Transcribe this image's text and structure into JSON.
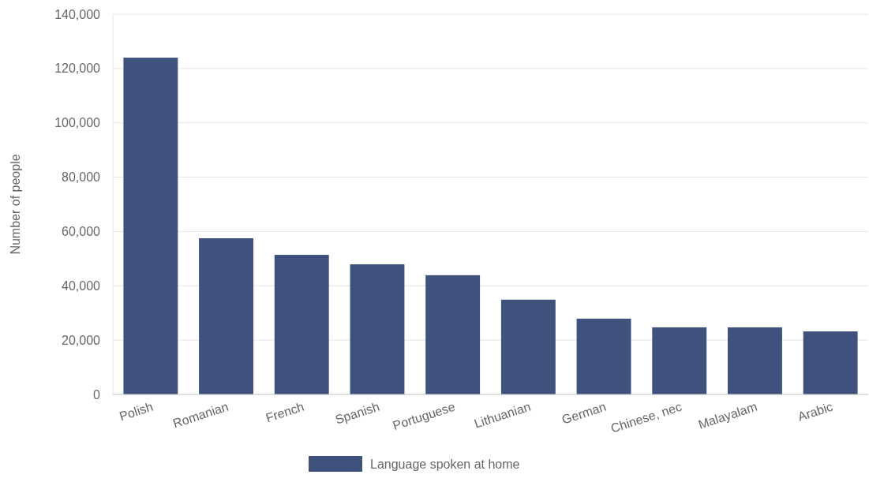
{
  "chart_data": {
    "type": "bar",
    "ylabel": "Number of people",
    "categories": [
      "Polish",
      "Romanian",
      "French",
      "Spanish",
      "Portuguese",
      "Lithuanian",
      "German",
      "Chinese, nec",
      "Malayalam",
      "Arabic"
    ],
    "series": [
      {
        "name": "Language spoken at home",
        "color": "#3f527e",
        "values": [
          124000,
          57500,
          51400,
          47900,
          43900,
          34900,
          27900,
          24700,
          24700,
          23200
        ]
      }
    ],
    "ylim": [
      0,
      140000
    ],
    "yticks": [
      {
        "value": 0,
        "label": "0"
      },
      {
        "value": 20000,
        "label": "20,000"
      },
      {
        "value": 40000,
        "label": "40,000"
      },
      {
        "value": 60000,
        "label": "60,000"
      },
      {
        "value": 80000,
        "label": "80,000"
      },
      {
        "value": 100000,
        "label": "100,000"
      },
      {
        "value": 120000,
        "label": "120,000"
      },
      {
        "value": 140000,
        "label": "140,000"
      }
    ],
    "grid": "y",
    "legend": "bottom"
  }
}
